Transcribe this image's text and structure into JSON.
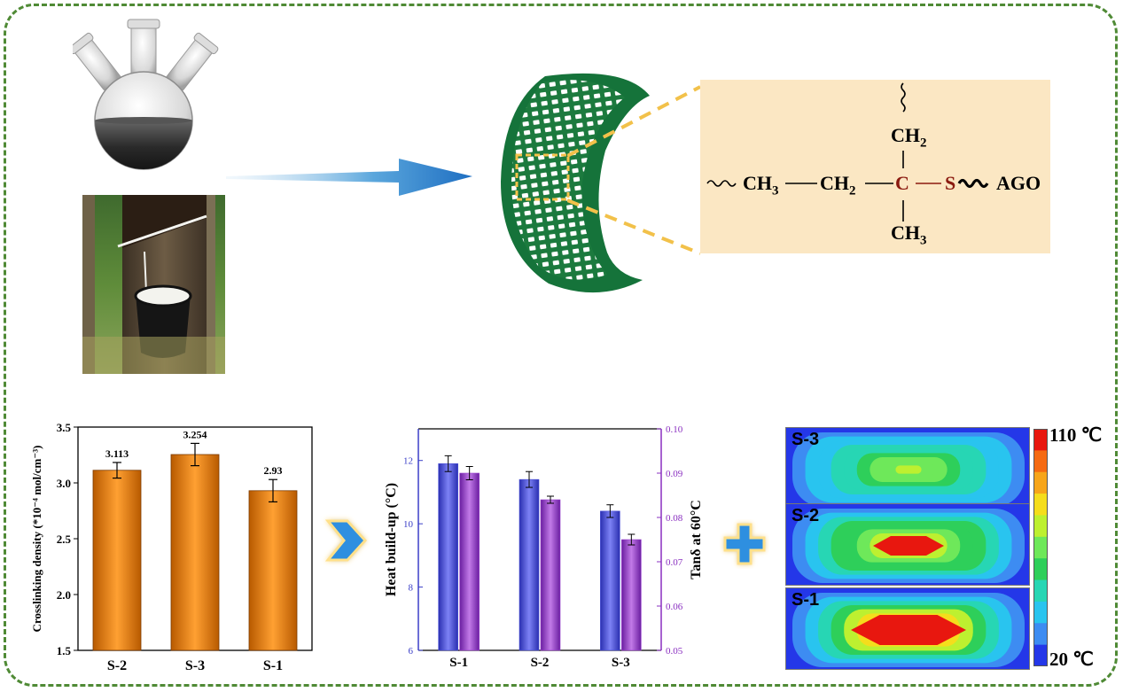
{
  "chem": {
    "top_group": "CH",
    "top_group_sub": "2",
    "left_group": "CH",
    "left_group_sub": "3",
    "mid_group": "CH",
    "mid_group_sub": "2",
    "center_atom": "C",
    "sulfur": "S",
    "right_group": "AGO",
    "bottom_group": "CH",
    "bottom_group_sub": "3"
  },
  "thermal": {
    "panels": [
      {
        "label": "S-3",
        "hot_level": 0.55
      },
      {
        "label": "S-2",
        "hot_level": 0.75
      },
      {
        "label": "S-1",
        "hot_level": 1.0
      }
    ],
    "scale_max": "110 ℃",
    "scale_min": "20 ℃",
    "scale_colors": [
      "#e8170f",
      "#f56a12",
      "#f7a51a",
      "#f5dd1c",
      "#bdf030",
      "#6ee85a",
      "#2ecf5a",
      "#27d6b4",
      "#29c4ef",
      "#3d8cf2",
      "#2437e8"
    ]
  },
  "chart_data": [
    {
      "type": "bar",
      "categories": [
        "S-2",
        "S-3",
        "S-1"
      ],
      "values": [
        3.113,
        3.254,
        2.93
      ],
      "errors": [
        0.07,
        0.1,
        0.1
      ],
      "data_labels": [
        "3.113",
        "3.254",
        "2.93"
      ],
      "ylabel": "Crosslinking density (*10⁻⁴ mol/cm⁻³)",
      "ylim": [
        1.5,
        3.5
      ],
      "yticks": [
        "1.5",
        "2.0",
        "2.5",
        "3.0",
        "3.5"
      ],
      "color": "#f08a12"
    },
    {
      "type": "bar",
      "categories": [
        "S-1",
        "S-2",
        "S-3"
      ],
      "series": [
        {
          "axis": "left",
          "values": [
            11.9,
            11.4,
            10.4
          ],
          "errors": [
            0.25,
            0.25,
            0.2
          ],
          "color": "#4a4fd8"
        },
        {
          "axis": "right",
          "values": [
            0.09,
            0.084,
            0.075
          ],
          "errors": [
            0.0015,
            0.0008,
            0.0012
          ],
          "color": "#9a3fd0"
        }
      ],
      "ylabel": "Heat build-up (°C)",
      "ylim": [
        6,
        13
      ],
      "yticks": [
        "6",
        "8",
        "10",
        "12"
      ],
      "y2label": "Tanδ at 60°C",
      "y2lim": [
        0.05,
        0.1
      ],
      "y2ticks": [
        "0.05",
        "0.06",
        "0.07",
        "0.08",
        "0.09",
        "0.10"
      ]
    }
  ]
}
